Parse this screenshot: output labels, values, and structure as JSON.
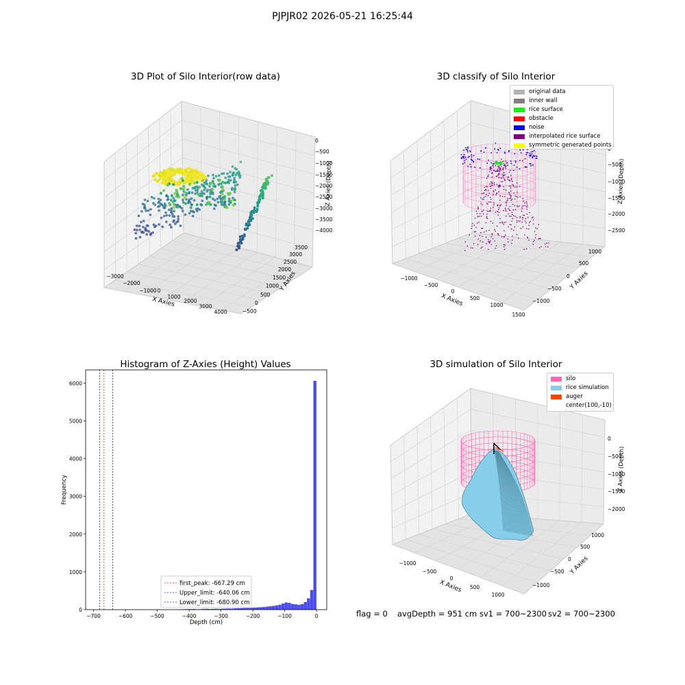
{
  "suptitle": "PJPJR02 2026-05-21 16:25:44",
  "colors": {
    "original_data": "#b3b3b3",
    "inner_wall": "#808080",
    "rice_surface": "#00ff00",
    "obstacle": "#ff0000",
    "noise": "#0000ff",
    "interpolated": "#800080",
    "symmetric": "#ffff00",
    "silo": "#ff69b4",
    "rice_sim": "#87ceeb",
    "auger": "#ff4500",
    "hist_bar": "#4b4bf5"
  },
  "status": {
    "flag": "flag = 0",
    "avg_depth": "avgDepth = 951 cm",
    "sv1": "sv1 = 700~2300",
    "sv2": "sv2 = 700~2300"
  },
  "chart_data": [
    {
      "type": "scatter",
      "title": "3D Plot of Silo Interior(row data)",
      "xlabel": "X Axies",
      "ylabel": "Y Axies",
      "zlabel": "Z Axies (Depth)",
      "x_ticks": [
        "−3000",
        "−2000",
        "−1000",
        "0",
        "1000",
        "2000",
        "3000",
        "4000"
      ],
      "y_ticks": [
        "−500",
        "0",
        "500",
        "1000",
        "1500",
        "2000",
        "2500",
        "3000",
        "3500"
      ],
      "z_ticks": [
        "0",
        "−500",
        "−1000",
        "−1500",
        "−2000",
        "−2500",
        "−3000",
        "−3500",
        "−4000"
      ],
      "colormap": "viridis",
      "grid": true
    },
    {
      "type": "scatter",
      "title": "3D classify of Silo Interior",
      "xlabel": "X Axies",
      "ylabel": "Y Axies",
      "zlabel": "Z Axies (Depth)",
      "x_ticks": [
        "−1000",
        "−500",
        "0",
        "500",
        "1000",
        "1500"
      ],
      "y_ticks": [
        "−1000",
        "−500",
        "0",
        "500",
        "1000"
      ],
      "z_ticks": [
        "0",
        "−500",
        "−1000",
        "−1500",
        "−2000",
        "−2500"
      ],
      "legend": [
        "original data",
        "inner wall",
        "rice surface",
        "obstacle",
        "noise",
        "interpolated rice surface",
        "symmetric generated points"
      ],
      "legend_position": "top-right",
      "grid": true
    },
    {
      "type": "bar",
      "title": "Histogram of Z-Axies (Height) Values",
      "xlabel": "Depth (cm)",
      "ylabel": "Frequency",
      "xlim": [
        -725,
        32
      ],
      "ylim": [
        0,
        6350
      ],
      "x_ticks": [
        -700,
        -600,
        -500,
        -400,
        -300,
        -200,
        -100,
        0
      ],
      "y_ticks": [
        0,
        1000,
        2000,
        3000,
        4000,
        5000,
        6000
      ],
      "bin_width": 10,
      "bins": [
        {
          "x0": -440,
          "count": 5
        },
        {
          "x0": -430,
          "count": 8
        },
        {
          "x0": -420,
          "count": 12
        },
        {
          "x0": -410,
          "count": 15
        },
        {
          "x0": -400,
          "count": 15
        },
        {
          "x0": -390,
          "count": 18
        },
        {
          "x0": -380,
          "count": 10
        },
        {
          "x0": -370,
          "count": 12
        },
        {
          "x0": -360,
          "count": 20
        },
        {
          "x0": -350,
          "count": 22
        },
        {
          "x0": -340,
          "count": 18
        },
        {
          "x0": -330,
          "count": 20
        },
        {
          "x0": -320,
          "count": 25
        },
        {
          "x0": -310,
          "count": 20
        },
        {
          "x0": -300,
          "count": 25
        },
        {
          "x0": -290,
          "count": 28
        },
        {
          "x0": -280,
          "count": 30
        },
        {
          "x0": -270,
          "count": 28
        },
        {
          "x0": -260,
          "count": 35
        },
        {
          "x0": -250,
          "count": 38
        },
        {
          "x0": -240,
          "count": 40
        },
        {
          "x0": -230,
          "count": 45
        },
        {
          "x0": -220,
          "count": 50
        },
        {
          "x0": -210,
          "count": 50
        },
        {
          "x0": -200,
          "count": 55
        },
        {
          "x0": -190,
          "count": 60
        },
        {
          "x0": -180,
          "count": 65
        },
        {
          "x0": -170,
          "count": 70
        },
        {
          "x0": -160,
          "count": 80
        },
        {
          "x0": -150,
          "count": 90
        },
        {
          "x0": -140,
          "count": 100
        },
        {
          "x0": -130,
          "count": 115
        },
        {
          "x0": -120,
          "count": 130
        },
        {
          "x0": -110,
          "count": 160
        },
        {
          "x0": -100,
          "count": 190
        },
        {
          "x0": -90,
          "count": 180
        },
        {
          "x0": -80,
          "count": 150
        },
        {
          "x0": -70,
          "count": 140
        },
        {
          "x0": -60,
          "count": 130
        },
        {
          "x0": -50,
          "count": 145
        },
        {
          "x0": -40,
          "count": 200
        },
        {
          "x0": -30,
          "count": 300
        },
        {
          "x0": -20,
          "count": 520
        },
        {
          "x0": -10,
          "count": 6060
        }
      ],
      "vlines": [
        {
          "label": "first_peak: -667.29 cm",
          "value": -667.29,
          "color": "#cc3333"
        },
        {
          "label": "Upper_limit: -640.06 cm",
          "value": -640.06,
          "color": "#2222cc"
        },
        {
          "label": "Lower_limit: -680.90 cm",
          "value": -680.9,
          "color": "#2222cc"
        }
      ],
      "legend_position": "lower-center"
    },
    {
      "type": "area",
      "title": "3D simulation of Silo Interior",
      "xlabel": "X Axies",
      "ylabel": "Y Axies",
      "zlabel": "Z Axies (Depth)",
      "x_ticks": [
        "−1000",
        "−500",
        "0",
        "500",
        "1000"
      ],
      "y_ticks": [
        "−1000",
        "−500",
        "0",
        "500",
        "1000"
      ],
      "z_ticks": [
        "0",
        "−500",
        "−1000",
        "−1500",
        "−2000"
      ],
      "legend": [
        "silo",
        "rice simulation",
        "auger",
        "center(100,-10)"
      ],
      "legend_position": "top-right",
      "grid": true
    }
  ]
}
